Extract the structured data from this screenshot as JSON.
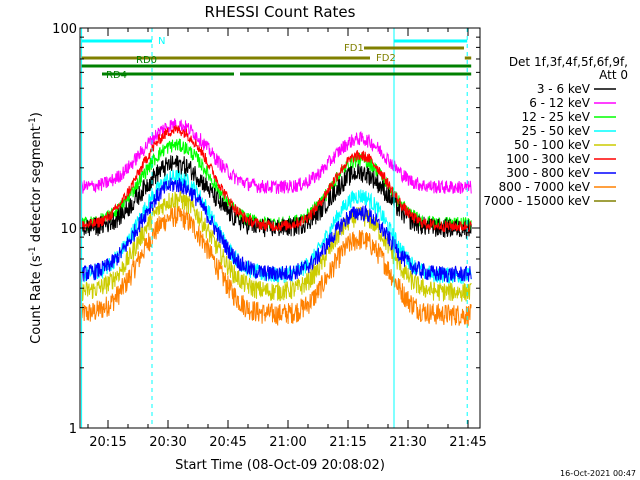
{
  "chart_data": {
    "type": "line",
    "title": "RHESSI Count Rates",
    "xlabel": "Start Time (08-Oct-09 20:08:02)",
    "ylabel_main": "Count Rate (s",
    "ylabel_sup": "-1",
    "ylabel_tail": " detector segment",
    "ylabel_sup2": "-1",
    "ylabel_close": ")",
    "yscale": "log",
    "x_range_minutes": [
      8.0,
      108.0
    ],
    "x_tick_labels": [
      {
        "minute": 15,
        "label": "20:15"
      },
      {
        "minute": 30,
        "label": "20:30"
      },
      {
        "minute": 45,
        "label": "20:45"
      },
      {
        "minute": 60,
        "label": "21:00"
      },
      {
        "minute": 75,
        "label": "21:15"
      },
      {
        "minute": 90,
        "label": "21:30"
      },
      {
        "minute": 105,
        "label": "21:45"
      }
    ],
    "ylim": [
      1,
      100
    ],
    "y_tick_labels": [
      {
        "value": 1,
        "label": "1"
      },
      {
        "value": 10,
        "label": "10"
      },
      {
        "value": 100,
        "label": "100"
      }
    ],
    "legend": {
      "placement": "right",
      "header1": "Det 1f,3f,4f,5f,6f,9f,",
      "header2": "Att 0"
    },
    "series": [
      {
        "name": "3 - 6 keV",
        "color": "#000000",
        "baseline": 10.0,
        "peak1": 21.0,
        "peak2": 19.0,
        "noise": 0.07
      },
      {
        "name": "6 - 12 keV",
        "color": "#ff00ff",
        "baseline": 16.0,
        "peak1": 33.0,
        "peak2": 28.0,
        "noise": 0.05
      },
      {
        "name": "12 - 25 keV",
        "color": "#00ff00",
        "baseline": 10.5,
        "peak1": 26.0,
        "peak2": 22.0,
        "noise": 0.05
      },
      {
        "name": "25 - 50 keV",
        "color": "#00ffff",
        "baseline": 5.8,
        "peak1": 18.0,
        "peak2": 14.5,
        "noise": 0.06
      },
      {
        "name": "50 - 100 keV",
        "color": "#cccc00",
        "baseline": 4.8,
        "peak1": 14.0,
        "peak2": 11.5,
        "noise": 0.07
      },
      {
        "name": "100 - 300 keV",
        "color": "#ff0000",
        "baseline": 10.2,
        "peak1": 31.0,
        "peak2": 23.0,
        "noise": 0.04
      },
      {
        "name": "300 - 800 keV",
        "color": "#0000ff",
        "baseline": 5.9,
        "peak1": 16.5,
        "peak2": 12.0,
        "noise": 0.06
      },
      {
        "name": "800 - 7000 keV",
        "color": "#ff8000",
        "baseline": 3.7,
        "peak1": 11.5,
        "peak2": 8.8,
        "noise": 0.08
      },
      {
        "name": "7000 - 15000 keV",
        "color": "#808000",
        "baseline": null,
        "peak1": null,
        "peak2": null,
        "noise": 0
      }
    ],
    "vertical_markers": [
      {
        "minute": 8.4,
        "style": "solid",
        "color": "#00ffff"
      },
      {
        "minute": 26.0,
        "style": "dashed",
        "color": "#00ffff"
      },
      {
        "minute": 86.5,
        "style": "solid",
        "color": "#00ffff"
      },
      {
        "minute": 104.8,
        "style": "dashed",
        "color": "#00ffff"
      }
    ],
    "flag_bars": [
      {
        "label": "N",
        "color": "#00ffff",
        "level": 1,
        "segments": [
          [
            8.4,
            26.0
          ],
          [
            86.5,
            104.8
          ]
        ],
        "label_minute": 27.5
      },
      {
        "label": "FD1",
        "color": "#808000",
        "level": 2,
        "segments": [
          [
            79.0,
            104.0
          ]
        ],
        "label_minute": 74.0
      },
      {
        "label": "FD2",
        "color": "#808000",
        "level": 3,
        "segments": [
          [
            8.4,
            80.5
          ],
          [
            104.2,
            105.8
          ]
        ],
        "label_minute": 82.0
      },
      {
        "label": "RD0",
        "color": "#008000",
        "level": 4,
        "segments": [
          [
            8.4,
            105.8
          ]
        ],
        "label_minute": 22.0
      },
      {
        "label": "RD4",
        "color": "#008000",
        "level": 5,
        "segments": [
          [
            13.5,
            46.5
          ],
          [
            48.0,
            105.8
          ]
        ],
        "label_minute": 14.5
      }
    ]
  },
  "footer": {
    "timestamp": "16-Oct-2021 00:47"
  }
}
